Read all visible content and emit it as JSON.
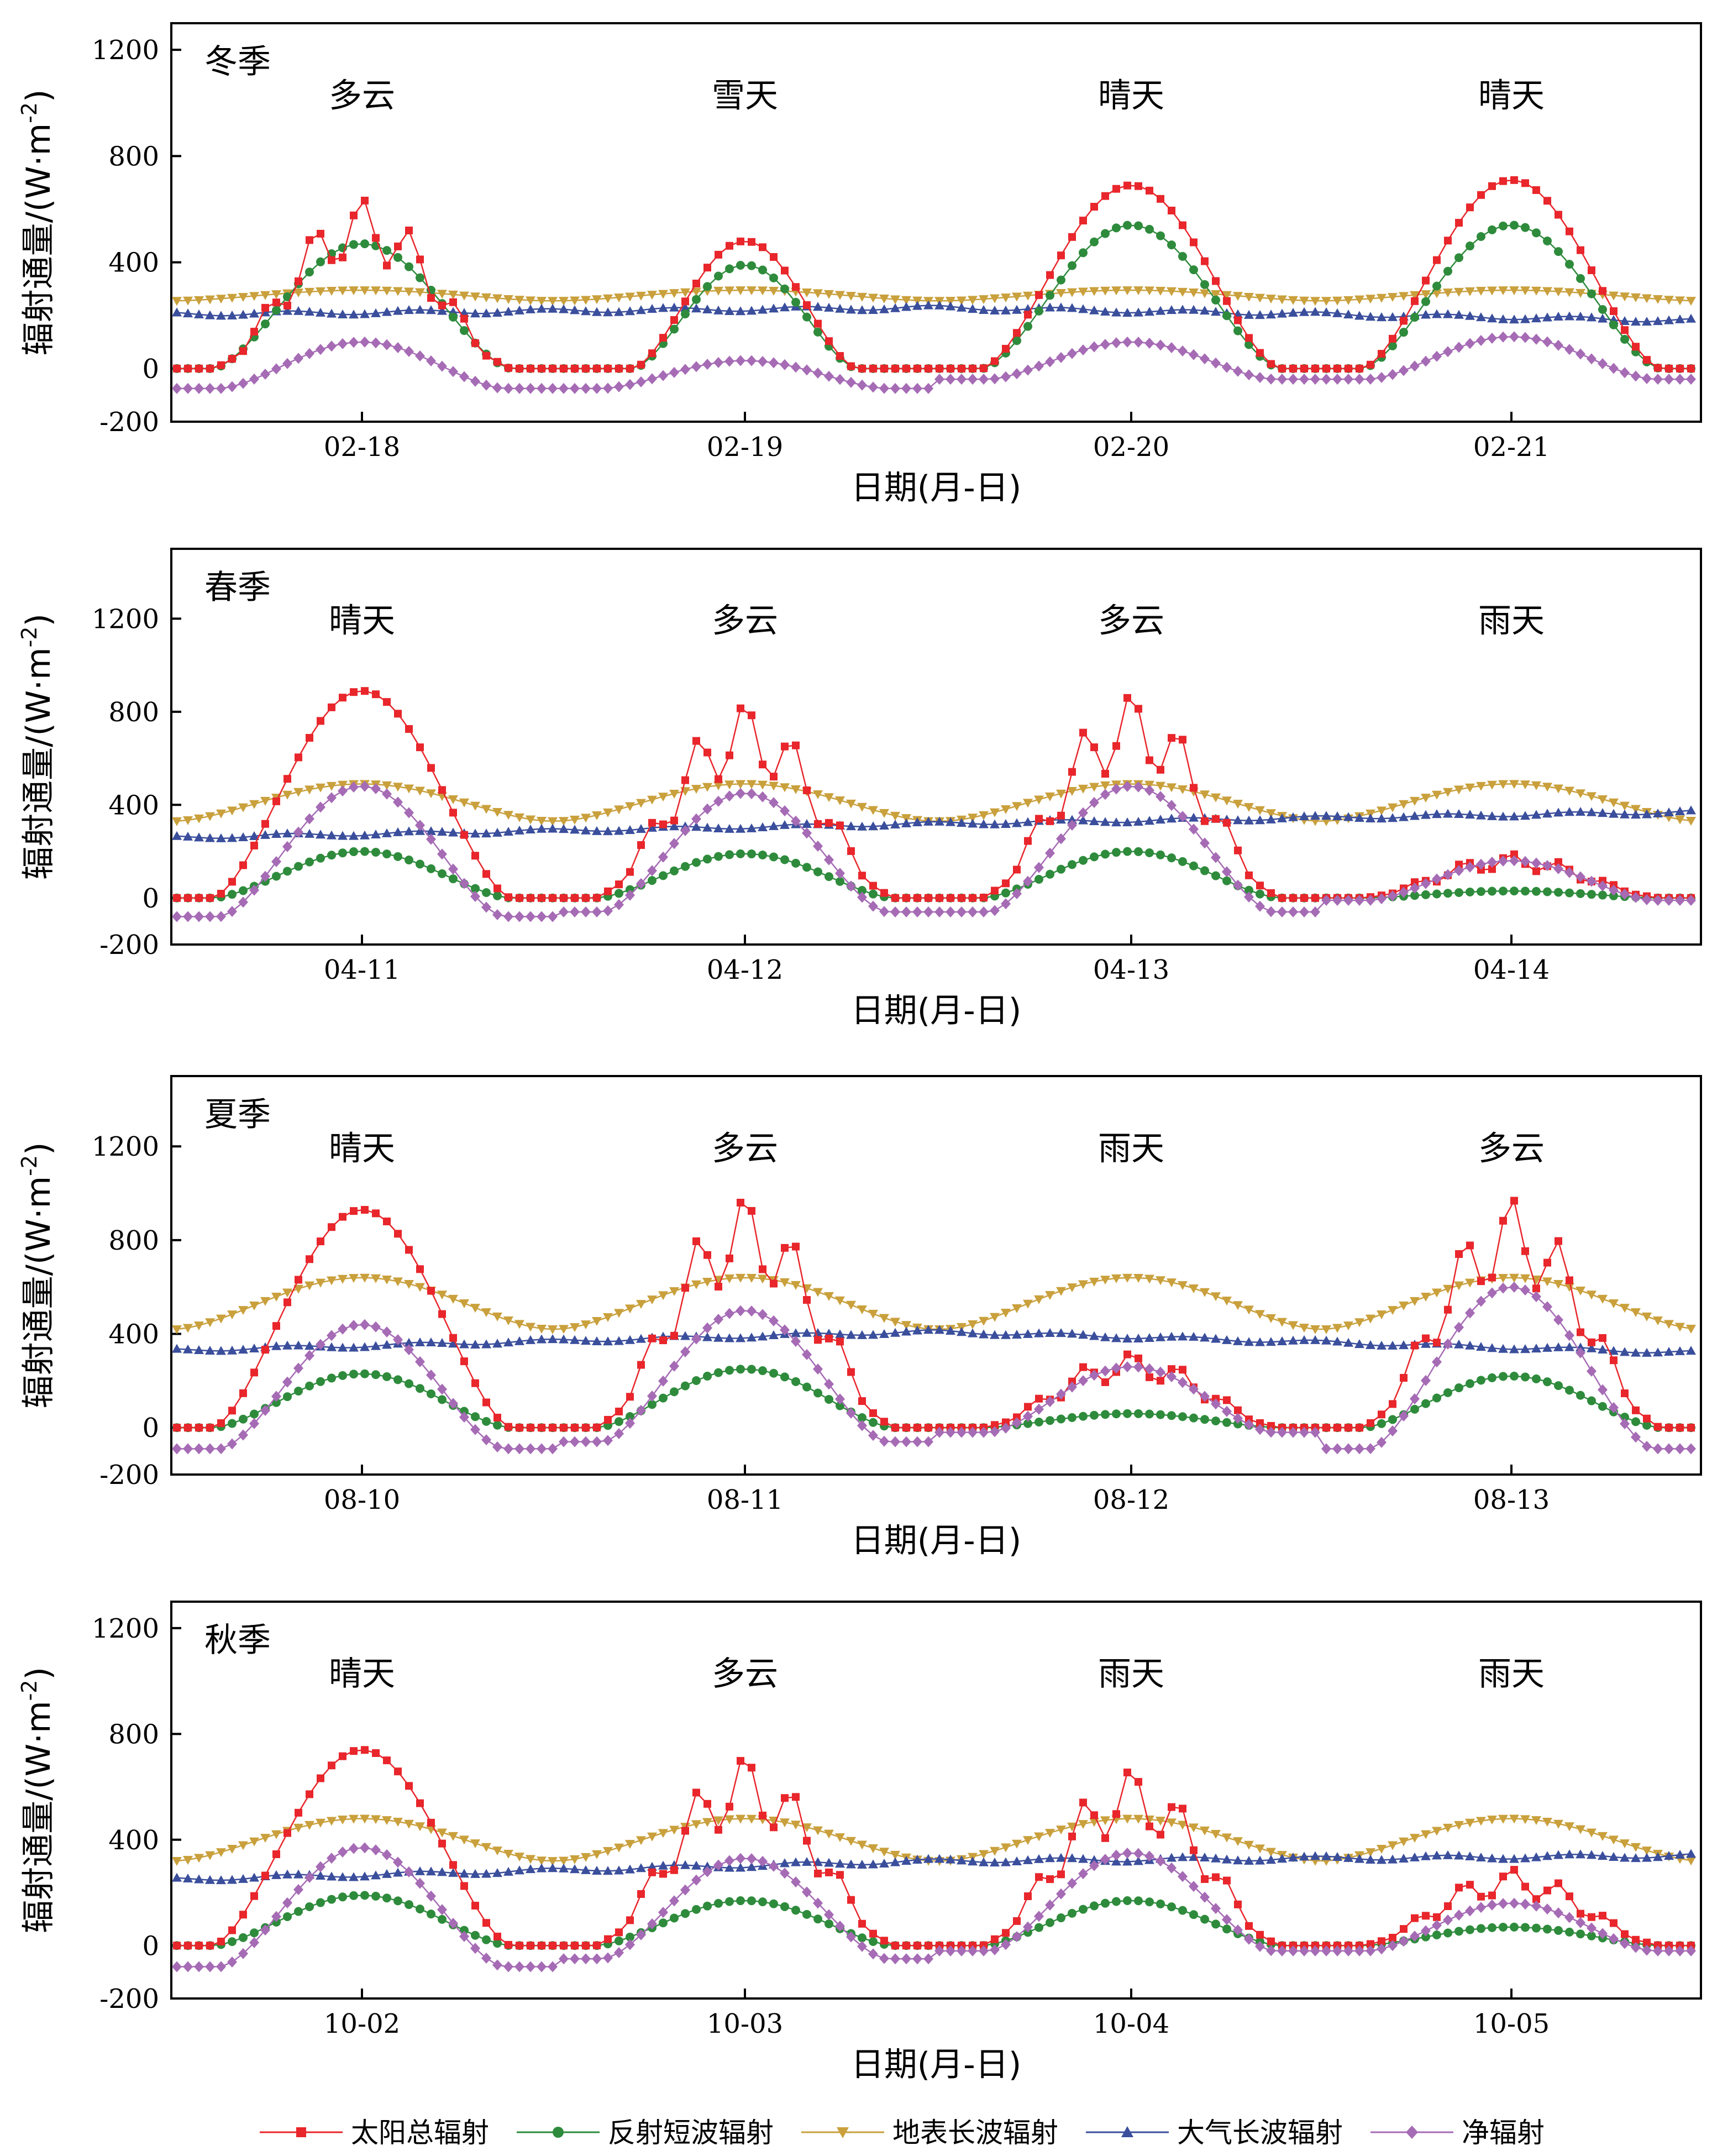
{
  "chart_data": [
    {
      "type": "line",
      "season": "冬季",
      "xlabel": "日期(月-日)",
      "ylabel": "辐射通量/(W·m",
      "ylabel_sup": "-2",
      "ylabel_close": ")",
      "ylim": [
        -200,
        1300
      ],
      "yticks": [
        -200,
        0,
        400,
        800,
        1200
      ],
      "days": [
        "02-18",
        "02-19",
        "02-20",
        "02-21"
      ],
      "weather": [
        "多云",
        "雪天",
        "晴天",
        "晴天"
      ],
      "series": {
        "solar": [
          {
            "peak": 640,
            "shape": "cloudy"
          },
          {
            "peak": 480,
            "shape": "narrow"
          },
          {
            "peak": 690,
            "shape": "clear"
          },
          {
            "peak": 710,
            "shape": "clear"
          }
        ],
        "reflect": [
          {
            "peak": 470
          },
          {
            "peak": 390
          },
          {
            "peak": 540
          },
          {
            "peak": 540
          }
        ],
        "surf_lw": {
          "night": 255,
          "day": 295
        },
        "atm_lw": {
          "start": 205,
          "mid": 230,
          "end": 180
        },
        "net": [
          {
            "peak": 100,
            "night": -75
          },
          {
            "peak": 30,
            "night": -75
          },
          {
            "peak": 100,
            "night": -40
          },
          {
            "peak": 120,
            "night": -40
          }
        ]
      }
    },
    {
      "type": "line",
      "season": "春季",
      "xlabel": "日期(月-日)",
      "ylabel": "辐射通量/(W·m",
      "ylabel_sup": "-2",
      "ylabel_close": ")",
      "ylim": [
        -200,
        1500
      ],
      "yticks": [
        -200,
        0,
        400,
        800,
        1200
      ],
      "days": [
        "04-11",
        "04-12",
        "04-13",
        "04-14"
      ],
      "weather": [
        "晴天",
        "多云",
        "多云",
        "雨天"
      ],
      "series": {
        "solar": [
          {
            "peak": 890
          },
          {
            "peak": 840
          },
          {
            "peak": 880
          },
          {
            "peak": 190
          }
        ],
        "reflect": [
          {
            "peak": 200
          },
          {
            "peak": 190
          },
          {
            "peak": 200
          },
          {
            "peak": 30
          }
        ],
        "surf_lw": {
          "night": 330,
          "day": 490
        },
        "atm_lw": {
          "start": 260,
          "mid": 320,
          "end": 370
        },
        "net": [
          {
            "peak": 480,
            "night": -80
          },
          {
            "peak": 450,
            "night": -60
          },
          {
            "peak": 480,
            "night": -60
          },
          {
            "peak": 160,
            "night": -10
          }
        ]
      }
    },
    {
      "type": "line",
      "season": "夏季",
      "xlabel": "日期(月-日)",
      "ylabel": "辐射通量/(W·m",
      "ylabel_sup": "-2",
      "ylabel_close": ")",
      "ylim": [
        -200,
        1500
      ],
      "yticks": [
        -200,
        0,
        400,
        800,
        1200
      ],
      "days": [
        "08-10",
        "08-11",
        "08-12",
        "08-13"
      ],
      "weather": [
        "晴天",
        "多云",
        "雨天",
        "多云"
      ],
      "series": {
        "solar": [
          {
            "peak": 930
          },
          {
            "peak": 990
          },
          {
            "peak": 320
          },
          {
            "peak": 980
          }
        ],
        "reflect": [
          {
            "peak": 230
          },
          {
            "peak": 250
          },
          {
            "peak": 60
          },
          {
            "peak": 220
          }
        ],
        "surf_lw": {
          "night": 420,
          "day": 640
        },
        "atm_lw": {
          "start": 330,
          "mid": 410,
          "end": 320
        },
        "net": [
          {
            "peak": 440,
            "night": -90
          },
          {
            "peak": 500,
            "night": -60
          },
          {
            "peak": 260,
            "night": -20
          },
          {
            "peak": 600,
            "night": -90
          }
        ]
      }
    },
    {
      "type": "line",
      "season": "秋季",
      "xlabel": "日期(月-日)",
      "ylabel": "辐射通量/(W·m",
      "ylabel_sup": "-2",
      "ylabel_close": ")",
      "ylim": [
        -200,
        1300
      ],
      "yticks": [
        -200,
        0,
        400,
        800,
        1200
      ],
      "days": [
        "10-02",
        "10-03",
        "10-04",
        "10-05"
      ],
      "weather": [
        "晴天",
        "多云",
        "雨天",
        "雨天"
      ],
      "series": {
        "solar": [
          {
            "peak": 740
          },
          {
            "peak": 720
          },
          {
            "peak": 670
          },
          {
            "peak": 290
          }
        ],
        "reflect": [
          {
            "peak": 190
          },
          {
            "peak": 170
          },
          {
            "peak": 170
          },
          {
            "peak": 70
          }
        ],
        "surf_lw": {
          "night": 320,
          "day": 480
        },
        "atm_lw": {
          "start": 250,
          "mid": 320,
          "end": 340
        },
        "net": [
          {
            "peak": 370,
            "night": -80
          },
          {
            "peak": 330,
            "night": -50
          },
          {
            "peak": 350,
            "night": -20
          },
          {
            "peak": 160,
            "night": -20
          }
        ]
      }
    }
  ],
  "legend": [
    {
      "key": "solar",
      "label": "太阳总辐射",
      "color": "#e8262b",
      "marker": "square"
    },
    {
      "key": "reflect",
      "label": "反射短波辐射",
      "color": "#2e8b3c",
      "marker": "circle"
    },
    {
      "key": "surf_lw",
      "label": "地表长波辐射",
      "color": "#c9a03c",
      "marker": "triangle-down"
    },
    {
      "key": "atm_lw",
      "label": "大气长波辐射",
      "color": "#3a4e9c",
      "marker": "triangle-up"
    },
    {
      "key": "net",
      "label": "净辐射",
      "color": "#a66bb5",
      "marker": "diamond"
    }
  ]
}
